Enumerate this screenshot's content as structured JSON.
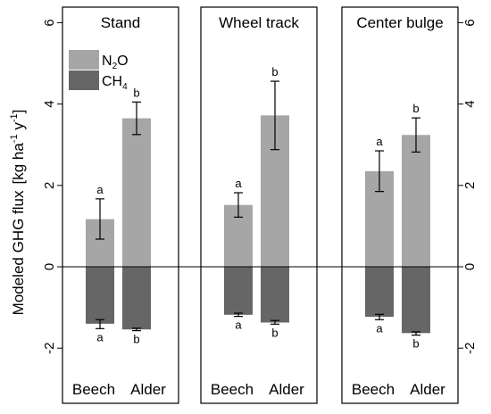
{
  "chart_data": {
    "type": "bar",
    "ylabel": "Modeled GHG flux",
    "ylabel_unit_prefix": "[kg ha",
    "ylabel_unit_exp1": "-1",
    "ylabel_unit_mid": " y",
    "ylabel_unit_exp2": "-1",
    "ylabel_unit_suffix": "]",
    "ylim": [
      -2.5,
      6.4
    ],
    "yticks": [
      -2,
      0,
      2,
      4,
      6
    ],
    "ytick_labels": [
      "-2",
      "0",
      "2",
      "4",
      "6"
    ],
    "categories": [
      "Beech",
      "Alder"
    ],
    "legend": [
      {
        "main": "N",
        "sub": "2",
        "tail": "O",
        "color": "#a6a6a6"
      },
      {
        "main": "CH",
        "sub": "4",
        "tail": "",
        "color": "#666666"
      }
    ],
    "series_colors": {
      "N2O": "#a6a6a6",
      "CH4": "#666666"
    },
    "panels": [
      {
        "title": "Stand",
        "N2O": [
          {
            "category": "Beech",
            "value": 1.17,
            "err_low": 0.68,
            "err_high": 1.67,
            "letter": "a"
          },
          {
            "category": "Alder",
            "value": 3.65,
            "err_low": 3.25,
            "err_high": 4.05,
            "letter": "b"
          }
        ],
        "CH4": [
          {
            "category": "Beech",
            "value": -1.4,
            "err_low": -1.52,
            "err_high": -1.3,
            "letter": "a"
          },
          {
            "category": "Alder",
            "value": -1.54,
            "err_low": -1.57,
            "err_high": -1.51,
            "letter": "b"
          }
        ]
      },
      {
        "title": "Wheel track",
        "N2O": [
          {
            "category": "Beech",
            "value": 1.52,
            "err_low": 1.22,
            "err_high": 1.82,
            "letter": "a"
          },
          {
            "category": "Alder",
            "value": 3.72,
            "err_low": 2.88,
            "err_high": 4.56,
            "letter": "b"
          }
        ],
        "CH4": [
          {
            "category": "Beech",
            "value": -1.18,
            "err_low": -1.22,
            "err_high": -1.14,
            "letter": "a"
          },
          {
            "category": "Alder",
            "value": -1.37,
            "err_low": -1.41,
            "err_high": -1.32,
            "letter": "b"
          }
        ]
      },
      {
        "title": "Center bulge",
        "N2O": [
          {
            "category": "Beech",
            "value": 2.35,
            "err_low": 1.85,
            "err_high": 2.85,
            "letter": "a"
          },
          {
            "category": "Alder",
            "value": 3.24,
            "err_low": 2.82,
            "err_high": 3.66,
            "letter": "b"
          }
        ],
        "CH4": [
          {
            "category": "Beech",
            "value": -1.23,
            "err_low": -1.3,
            "err_high": -1.17,
            "letter": "a"
          },
          {
            "category": "Alder",
            "value": -1.63,
            "err_low": -1.68,
            "err_high": -1.6,
            "letter": "b"
          }
        ]
      }
    ]
  }
}
